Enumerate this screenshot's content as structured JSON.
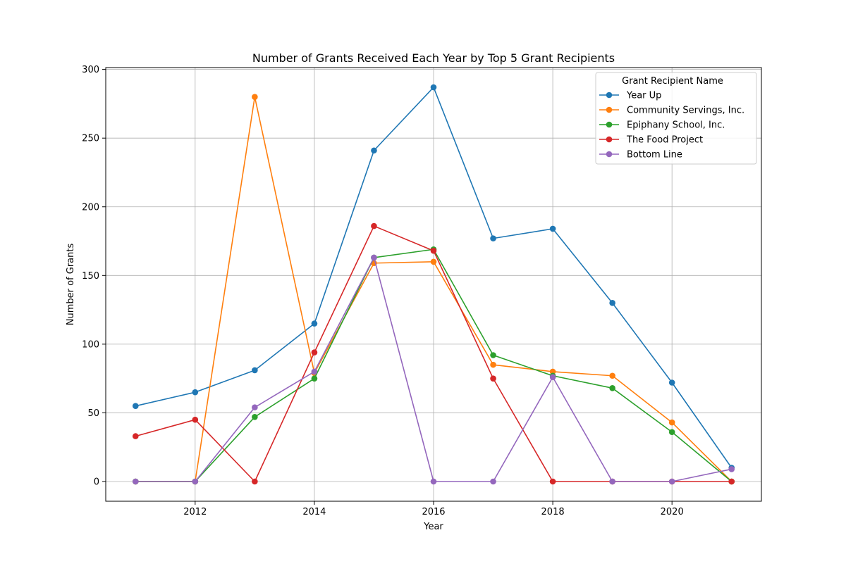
{
  "chart_data": {
    "type": "line",
    "title": "Number of Grants Received Each Year by Top 5 Grant Recipients",
    "xlabel": "Year",
    "ylabel": "Number of Grants",
    "x": [
      2011,
      2012,
      2013,
      2014,
      2015,
      2016,
      2017,
      2018,
      2019,
      2020,
      2021
    ],
    "xticks": [
      2012,
      2014,
      2016,
      2018,
      2020
    ],
    "yticks": [
      0,
      50,
      100,
      150,
      200,
      250,
      300
    ],
    "xlim": [
      2010.5,
      2021.5
    ],
    "ylim": [
      -14.35,
      301.35
    ],
    "grid": true,
    "legend_title": "Grant Recipient Name",
    "legend_position": "top-right",
    "series": [
      {
        "name": "Year Up",
        "color": "#1f77b4",
        "values": [
          55,
          65,
          81,
          115,
          241,
          287,
          177,
          184,
          130,
          72,
          10
        ]
      },
      {
        "name": "Community Servings, Inc.",
        "color": "#ff7f0e",
        "values": [
          0,
          0,
          280,
          79,
          159,
          160,
          85,
          80,
          77,
          43,
          0
        ]
      },
      {
        "name": "Epiphany School, Inc.",
        "color": "#2ca02c",
        "values": [
          0,
          0,
          47,
          75,
          163,
          169,
          92,
          77,
          68,
          36,
          0
        ]
      },
      {
        "name": "The Food Project",
        "color": "#d62728",
        "values": [
          33,
          45,
          0,
          94,
          186,
          168,
          75,
          0,
          0,
          0,
          0
        ]
      },
      {
        "name": "Bottom Line",
        "color": "#9467bd",
        "values": [
          0,
          0,
          54,
          80,
          163,
          0,
          0,
          76,
          0,
          0,
          9
        ]
      }
    ]
  }
}
